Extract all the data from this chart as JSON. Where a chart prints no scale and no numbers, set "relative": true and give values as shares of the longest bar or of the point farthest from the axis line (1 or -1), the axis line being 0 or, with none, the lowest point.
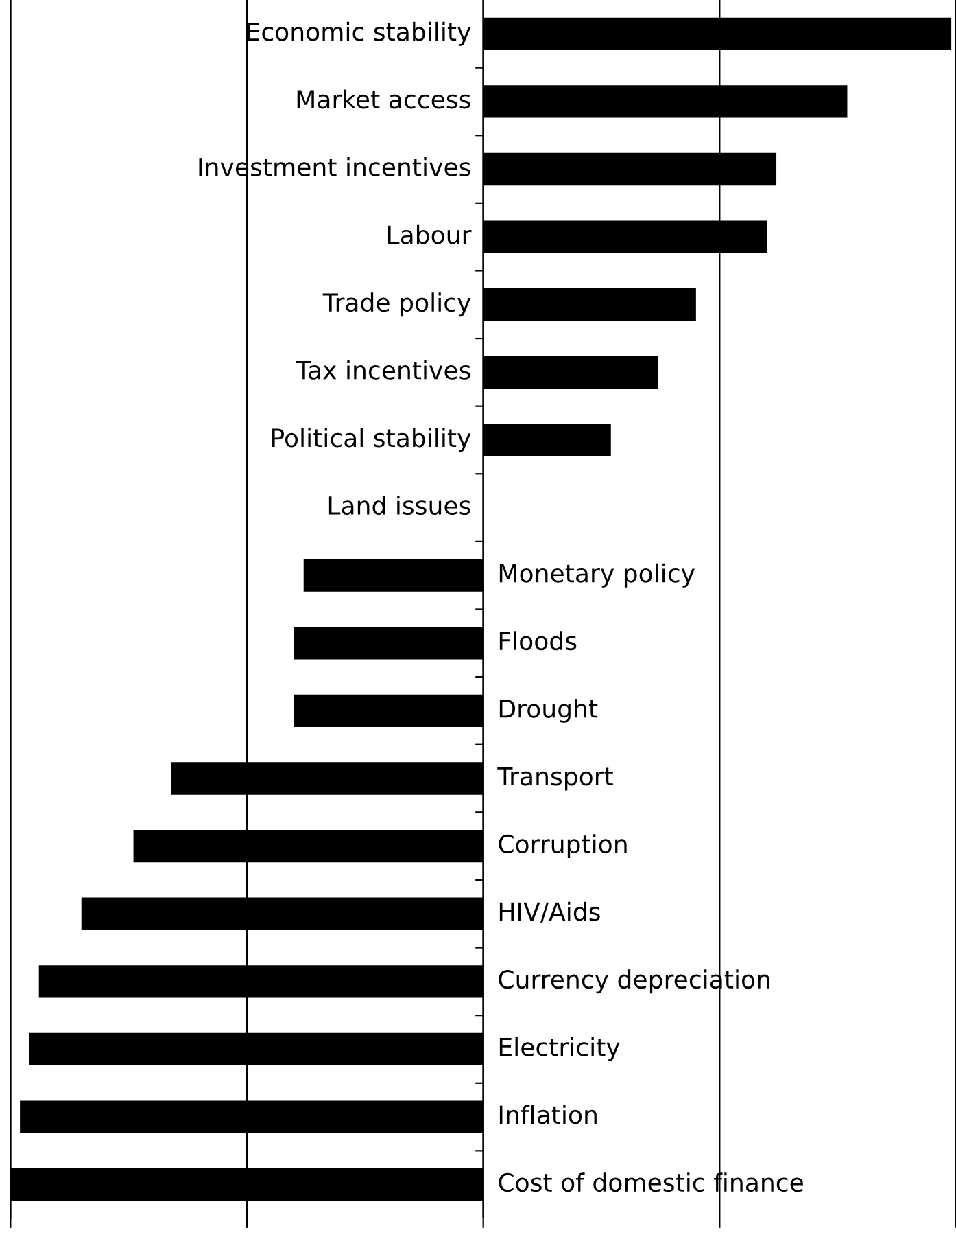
{
  "chart_data": {
    "type": "bar",
    "orientation": "horizontal",
    "relative": true,
    "grid": "x",
    "color": "#000000",
    "categories": [
      "Economic stability",
      "Market access",
      "Investment incentives",
      "Labour",
      "Trade policy",
      "Tax incentives",
      "Political stability",
      "Land issues",
      "Monetary policy",
      "Floods",
      "Drought",
      "Transport",
      "Corruption",
      "HIV/Aids",
      "Currency depreciation",
      "Electricity",
      "Inflation",
      "Cost of domestic finance"
    ],
    "values": [
      0.99,
      0.77,
      0.62,
      0.6,
      0.45,
      0.37,
      0.27,
      0,
      -0.38,
      -0.4,
      -0.4,
      -0.66,
      -0.74,
      -0.85,
      -0.94,
      -0.96,
      -0.98,
      -1
    ]
  }
}
